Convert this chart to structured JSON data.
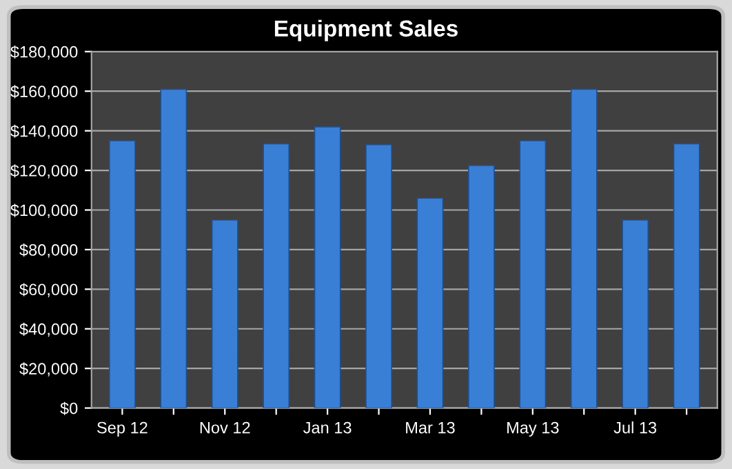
{
  "chart_data": {
    "type": "bar",
    "title": "Equipment Sales",
    "categories": [
      "Sep 12",
      null,
      "Nov 12",
      null,
      "Jan 13",
      null,
      "Mar 13",
      null,
      "May 13",
      null,
      "Jul 13",
      null
    ],
    "values": [
      135000,
      161000,
      95000,
      133500,
      142000,
      133000,
      106000,
      122500,
      135000,
      161000,
      95000,
      133500
    ],
    "color": "#3a7fd6",
    "ylim": [
      0,
      180000
    ],
    "yticks": [
      {
        "value": 0,
        "label": "$0"
      },
      {
        "value": 20000,
        "label": "$20,000"
      },
      {
        "value": 40000,
        "label": "$40,000"
      },
      {
        "value": 60000,
        "label": "$60,000"
      },
      {
        "value": 80000,
        "label": "$80,000"
      },
      {
        "value": 100000,
        "label": "$100,000"
      },
      {
        "value": 120000,
        "label": "$120,000"
      },
      {
        "value": 140000,
        "label": "$140,000"
      },
      {
        "value": 160000,
        "label": "$160,000"
      },
      {
        "value": 180000,
        "label": "$180,000"
      }
    ],
    "grid": "y"
  }
}
